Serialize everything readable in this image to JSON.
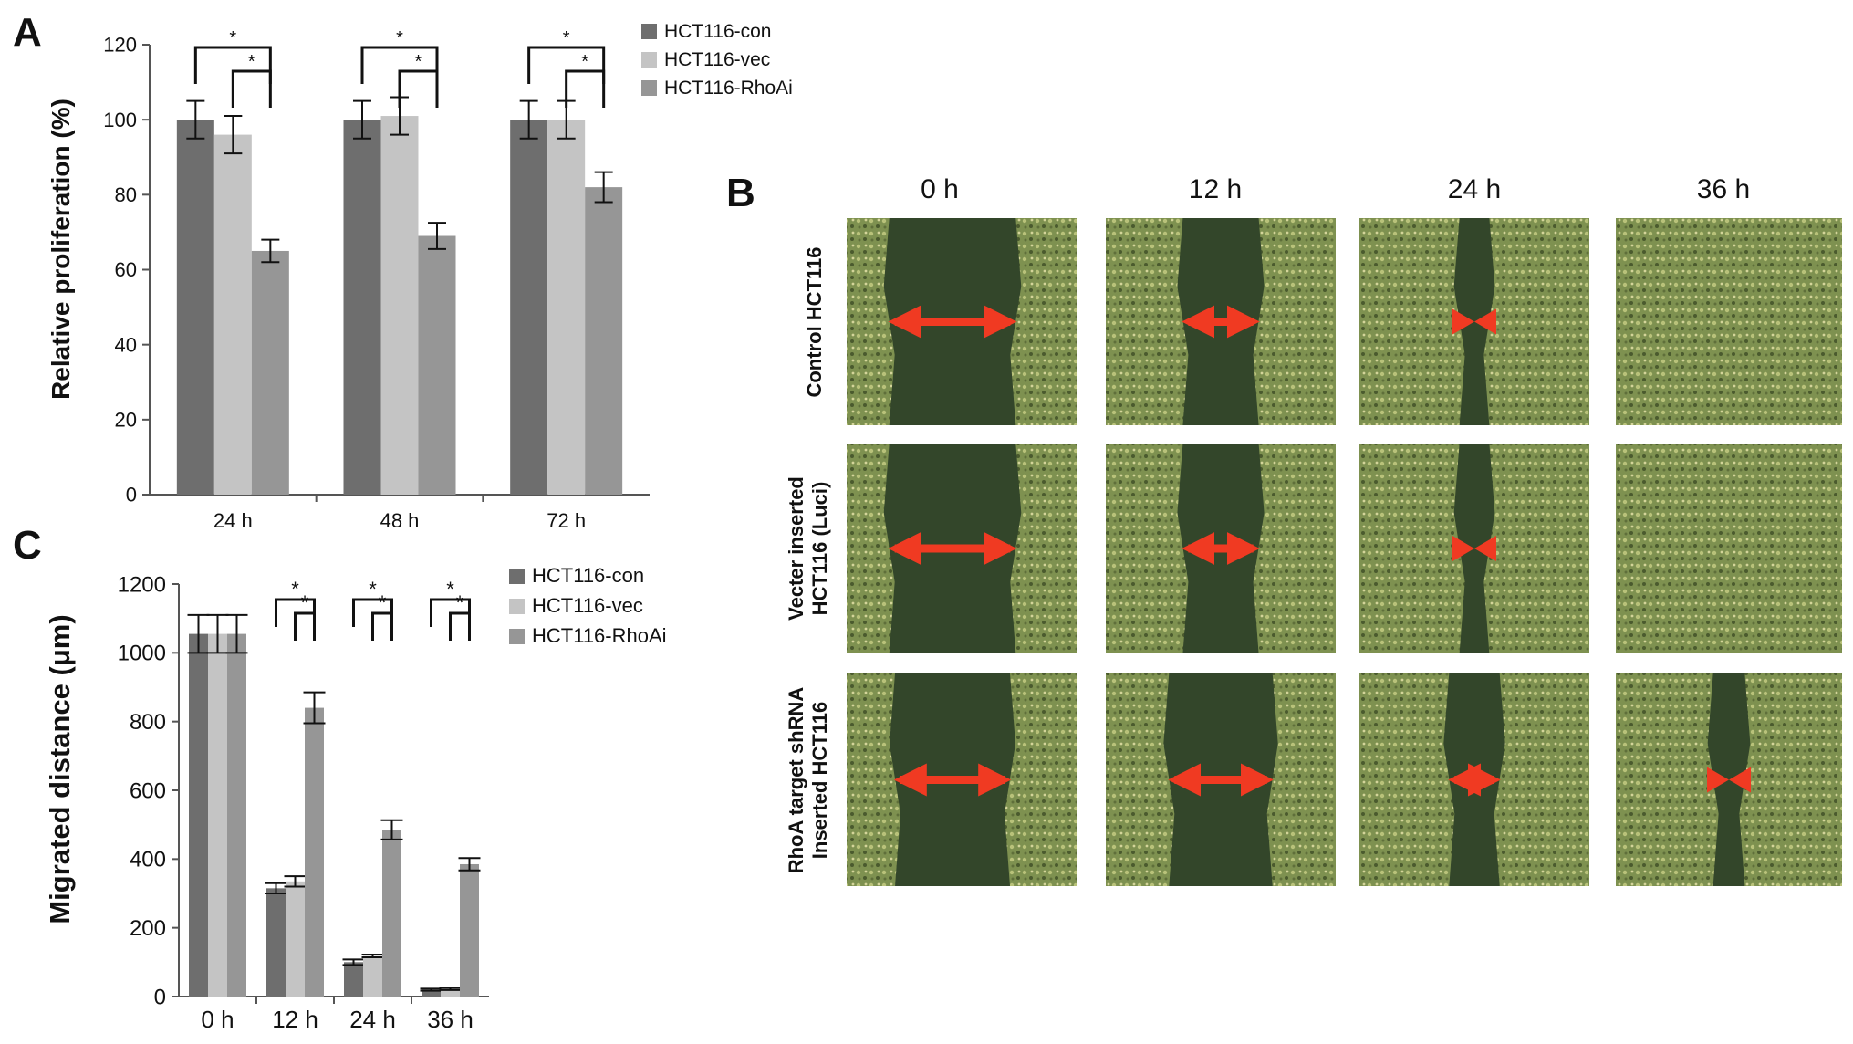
{
  "panels": {
    "a_letter": "A",
    "b_letter": "B",
    "c_letter": "C"
  },
  "colors": {
    "con": "#6e6e6e",
    "vec": "#c4c4c4",
    "rhoai": "#969696",
    "arrow": "#f03a22",
    "cell": "#7e9150",
    "cell_dark": "#4a5a2e",
    "gap": "#33462a"
  },
  "chart_data": [
    {
      "id": "A",
      "type": "bar",
      "title": "",
      "xlabel": "",
      "ylabel": "Relative proliferation (%)",
      "ylim": [
        0,
        120
      ],
      "yticks": [
        0,
        20,
        40,
        60,
        80,
        100,
        120
      ],
      "categories": [
        "24 h",
        "48 h",
        "72 h"
      ],
      "legend_position": "top-right",
      "series": [
        {
          "name": "HCT116-con",
          "color": "#6e6e6e",
          "values": [
            100,
            100,
            100
          ],
          "errors": [
            5,
            5,
            5
          ]
        },
        {
          "name": "HCT116-vec",
          "color": "#c4c4c4",
          "values": [
            96,
            101,
            100
          ],
          "errors": [
            5,
            5,
            5
          ]
        },
        {
          "name": "HCT116-RhoAi",
          "color": "#969696",
          "values": [
            65,
            69,
            82
          ],
          "errors": [
            3,
            3.5,
            4
          ]
        }
      ],
      "significance": "*"
    },
    {
      "id": "C",
      "type": "bar",
      "title": "",
      "xlabel": "",
      "ylabel": "Migrated distance (μm)",
      "ylim": [
        0,
        1200
      ],
      "yticks": [
        0,
        200,
        400,
        600,
        800,
        1000,
        1200
      ],
      "categories": [
        "0 h",
        "12 h",
        "24 h",
        "36 h"
      ],
      "legend_position": "top-right",
      "series": [
        {
          "name": "HCT116-con",
          "color": "#6e6e6e",
          "values": [
            1055,
            315,
            100,
            20
          ],
          "errors": [
            55,
            15,
            8,
            3
          ]
        },
        {
          "name": "HCT116-vec",
          "color": "#c4c4c4",
          "values": [
            1055,
            335,
            118,
            22
          ],
          "errors": [
            55,
            15,
            4,
            3
          ]
        },
        {
          "name": "HCT116-RhoAi",
          "color": "#969696",
          "values": [
            1055,
            840,
            485,
            385
          ],
          "errors": [
            55,
            45,
            28,
            18
          ]
        }
      ],
      "significance": "*"
    }
  ],
  "panel_b": {
    "time_labels": [
      "0 h",
      "12 h",
      "24 h",
      "36 h"
    ],
    "row_labels": [
      [
        "Control HCT116"
      ],
      [
        "Vecter inserted",
        "HCT116 (Luci)"
      ],
      [
        "RhoA target shRNA",
        "Inserted HCT116"
      ]
    ],
    "gap_fractions": [
      [
        0.55,
        0.33,
        0.13,
        0.0
      ],
      [
        0.55,
        0.33,
        0.13,
        0.0
      ],
      [
        0.5,
        0.45,
        0.22,
        0.14
      ]
    ]
  }
}
